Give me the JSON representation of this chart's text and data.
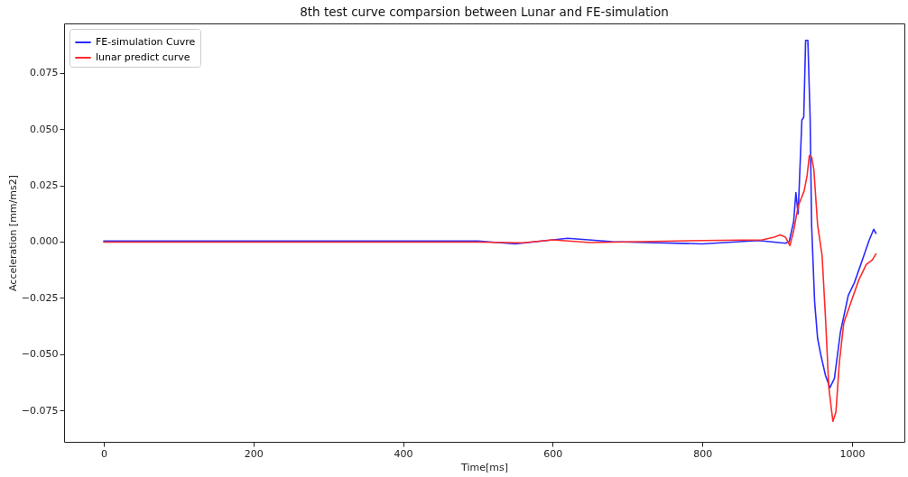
{
  "chart_data": {
    "type": "line",
    "title": "8th test curve comparsion between Lunar and FE-simulation",
    "xlabel": "Time[ms]",
    "ylabel": "Acceleration [mm/ms2]",
    "xlim": [
      -53,
      1070
    ],
    "ylim": [
      -0.089,
      0.097
    ],
    "xticks": [
      0,
      200,
      400,
      600,
      800,
      1000
    ],
    "yticks": [
      {
        "value": -0.075,
        "label": "−0.075"
      },
      {
        "value": -0.05,
        "label": "−0.050"
      },
      {
        "value": -0.025,
        "label": "−0.025"
      },
      {
        "value": 0,
        "label": "0.000"
      },
      {
        "value": 0.025,
        "label": "0.025"
      },
      {
        "value": 0.05,
        "label": "0.050"
      },
      {
        "value": 0.075,
        "label": "0.075"
      }
    ],
    "grid": false,
    "legend": "top left",
    "line_style": "solid",
    "series": [
      {
        "name": "FE-simulation Cuvre",
        "color": "#2a2aff",
        "x": [
          0,
          500,
          550,
          620,
          680,
          800,
          875,
          911,
          916,
          922,
          925,
          928,
          933,
          935.5,
          938,
          941,
          944,
          946,
          950,
          954,
          958,
          964.5,
          970.5,
          976.5,
          984.5,
          995,
          1003,
          1013,
          1023,
          1029,
          1032
        ],
        "values": [
          0.0003,
          0.0003,
          -0.001,
          0.0015,
          0,
          -0.001,
          0.0005,
          -0.0007,
          0,
          0.0089,
          0.0218,
          0.0123,
          0.054,
          0.0553,
          0.0895,
          0.0895,
          0.0553,
          0.0075,
          -0.0266,
          -0.043,
          -0.0499,
          -0.0594,
          -0.0649,
          -0.0608,
          -0.0403,
          -0.0239,
          -0.0184,
          -0.0089,
          0.0007,
          0.0055,
          0.0037
        ]
      },
      {
        "name": "lunar predict curve",
        "color": "#ff2a2a",
        "x": [
          0,
          500,
          560,
          600,
          650,
          800,
          880,
          896,
          904,
          911,
          917,
          922,
          928,
          936,
          940,
          943,
          946,
          949,
          954,
          960,
          964.5,
          969,
          974.5,
          978.5,
          983,
          989,
          999,
          1009,
          1019,
          1027,
          1032
        ],
        "values": [
          -0.0002,
          -0.0002,
          -0.0005,
          0.0008,
          -0.0004,
          0.0005,
          0.0008,
          0.002,
          0.003,
          0.002,
          -0.0018,
          0.0048,
          0.0157,
          0.0225,
          0.0294,
          0.0383,
          0.0376,
          0.032,
          0.0075,
          -0.0062,
          -0.0335,
          -0.0649,
          -0.0799,
          -0.0758,
          -0.054,
          -0.0362,
          -0.0266,
          -0.0171,
          -0.0102,
          -0.0082,
          -0.0055
        ]
      }
    ]
  }
}
